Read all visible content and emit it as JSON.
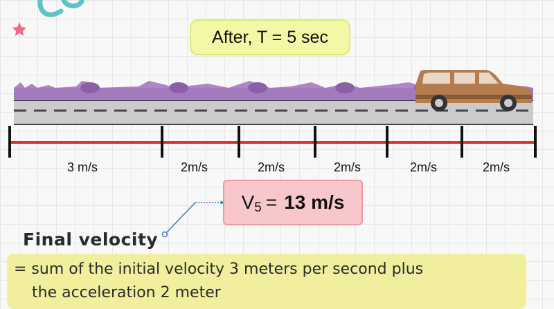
{
  "title": "After, T = 5 sec",
  "segments": [
    {
      "label": "3 m/s"
    },
    {
      "label": "2m/s"
    },
    {
      "label": "2m/s"
    },
    {
      "label": "2m/s"
    },
    {
      "label": "2m/s"
    },
    {
      "label": "2m/s"
    }
  ],
  "velocity": {
    "symbol": "V",
    "subscript": "5",
    "equals": "=",
    "value": "13 m/s"
  },
  "final_velocity_label": "Final velocity",
  "description": {
    "line1": "= sum of the initial velocity 3 meters per second plus",
    "line2": "the acceleration 2 meter"
  },
  "colors": {
    "timeline": "#e53030",
    "title_bg": "#f3f8a7",
    "value_box_bg": "#f7c7cb",
    "description_bg": "#f1ef9e",
    "car": "#b57c4e",
    "grass": "#a06ab0"
  }
}
